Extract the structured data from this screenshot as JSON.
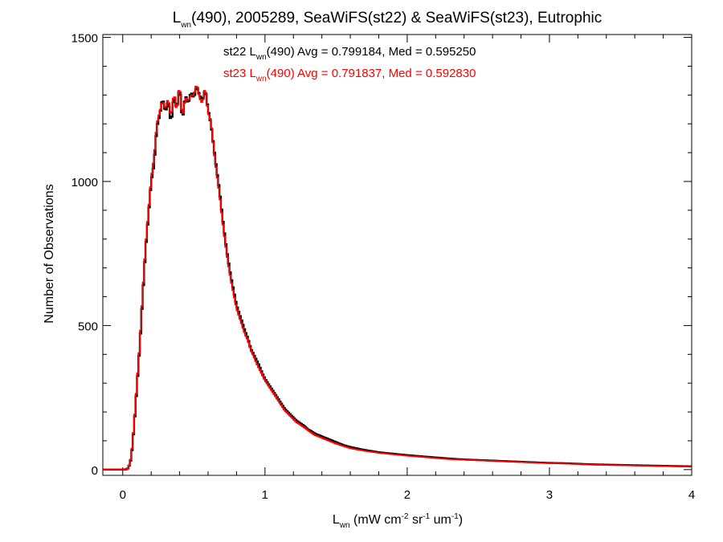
{
  "chart_data": {
    "type": "line",
    "title": {
      "pre": "L",
      "sub": "wn",
      "post": "(490), 2005289, SeaWiFS(st22) & SeaWiFS(st23), Eutrophic"
    },
    "xlabel": {
      "pre": "L",
      "sub": "wn",
      "mid1": " (mW cm",
      "sup1": "-2",
      "mid2": " sr",
      "sup2": "-1",
      "mid3": " um",
      "sup3": "-1",
      "post": ")"
    },
    "ylabel": "Number of Observations",
    "xlim": [
      -0.14,
      4.0
    ],
    "ylim": [
      -20,
      1510
    ],
    "xticks": [
      0,
      1,
      2,
      3,
      4
    ],
    "xtick_labels": [
      "0",
      "1",
      "2",
      "3",
      "4"
    ],
    "yticks": [
      0,
      500,
      1000,
      1500
    ],
    "ytick_labels": [
      "0",
      "500",
      "1000",
      "1500"
    ],
    "grid": false,
    "legend_placement": "top-center",
    "annotations": [
      {
        "series": "st22",
        "color": "#000000",
        "pre": "st22 L",
        "sub": "wn",
        "post": "(490) Avg = 0.799184, Med = 0.595250"
      },
      {
        "series": "st23",
        "color": "#ff0000",
        "pre": "st23 L",
        "sub": "wn",
        "post": "(490) Avg = 0.791837, Med = 0.592830"
      }
    ],
    "bin_width": 0.01,
    "x": [
      -0.14,
      -0.12,
      -0.1,
      -0.08,
      -0.06,
      -0.04,
      -0.02,
      0.0,
      0.02,
      0.04,
      0.06,
      0.08,
      0.1,
      0.12,
      0.14,
      0.16,
      0.18,
      0.2,
      0.22,
      0.24,
      0.26,
      0.28,
      0.3,
      0.32,
      0.34,
      0.36,
      0.38,
      0.4,
      0.42,
      0.44,
      0.46,
      0.48,
      0.5,
      0.52,
      0.54,
      0.56,
      0.58,
      0.6,
      0.62,
      0.64,
      0.66,
      0.68,
      0.7,
      0.72,
      0.74,
      0.76,
      0.78,
      0.8,
      0.82,
      0.84,
      0.86,
      0.88,
      0.9,
      0.92,
      0.94,
      0.96,
      0.98,
      1.0,
      1.02,
      1.04,
      1.06,
      1.08,
      1.1,
      1.12,
      1.14,
      1.16,
      1.18,
      1.2,
      1.22,
      1.25,
      1.28,
      1.3,
      1.32,
      1.35,
      1.4,
      1.45,
      1.5,
      1.55,
      1.6,
      1.7,
      1.8,
      1.9,
      2.0,
      2.1,
      2.2,
      2.3,
      2.4,
      2.5,
      2.6,
      2.7,
      2.8,
      2.9,
      3.0,
      3.1,
      3.2,
      3.3,
      3.4,
      3.5,
      3.6,
      3.7,
      3.8,
      3.9,
      4.0
    ],
    "series": [
      {
        "name": "st22",
        "color": "#000000",
        "values": [
          0,
          0,
          0,
          0,
          0,
          0,
          0,
          0,
          0,
          5,
          40,
          150,
          290,
          430,
          600,
          760,
          880,
          1000,
          1060,
          1190,
          1230,
          1290,
          1240,
          1280,
          1200,
          1300,
          1250,
          1330,
          1210,
          1300,
          1270,
          1310,
          1290,
          1330,
          1300,
          1280,
          1320,
          1250,
          1200,
          1120,
          1040,
          970,
          880,
          800,
          730,
          670,
          620,
          570,
          540,
          510,
          480,
          455,
          420,
          400,
          380,
          360,
          335,
          315,
          300,
          285,
          270,
          255,
          240,
          225,
          210,
          200,
          190,
          180,
          170,
          160,
          150,
          140,
          135,
          125,
          115,
          105,
          95,
          85,
          78,
          68,
          60,
          55,
          50,
          46,
          42,
          38,
          35,
          33,
          31,
          29,
          27,
          25,
          23,
          22,
          20,
          18,
          17,
          16,
          15,
          14,
          13,
          12,
          11
        ]
      },
      {
        "name": "st23",
        "color": "#ff0000",
        "values": [
          0,
          0,
          0,
          0,
          0,
          0,
          0,
          0,
          0,
          5,
          45,
          155,
          300,
          440,
          610,
          770,
          890,
          1010,
          1080,
          1200,
          1240,
          1280,
          1250,
          1290,
          1220,
          1310,
          1240,
          1340,
          1220,
          1290,
          1280,
          1300,
          1300,
          1340,
          1290,
          1270,
          1330,
          1240,
          1210,
          1110,
          1030,
          960,
          870,
          790,
          720,
          660,
          610,
          560,
          530,
          500,
          470,
          450,
          415,
          395,
          370,
          350,
          330,
          310,
          295,
          280,
          265,
          250,
          235,
          220,
          205,
          195,
          185,
          175,
          165,
          155,
          145,
          138,
          130,
          120,
          110,
          100,
          90,
          82,
          74,
          65,
          58,
          53,
          48,
          44,
          40,
          36,
          34,
          32,
          30,
          28,
          26,
          24,
          22,
          21,
          19,
          17,
          16,
          15,
          14,
          13,
          12,
          11,
          10
        ]
      }
    ]
  }
}
